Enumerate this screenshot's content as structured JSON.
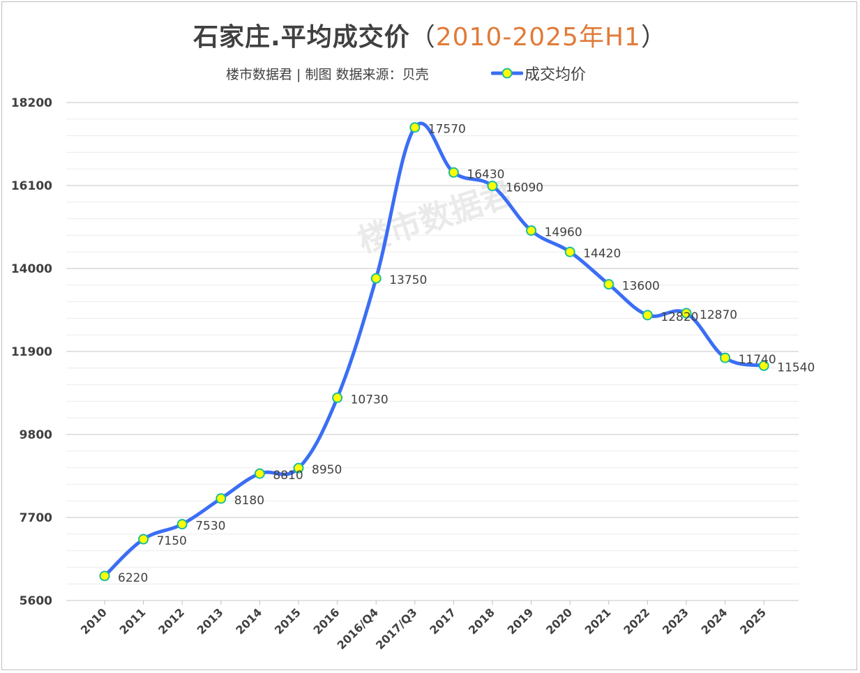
{
  "chart_data": {
    "type": "line",
    "title_main": "石家庄.平均成交价",
    "title_open": "（",
    "title_highlight": "2010-2025年H1",
    "title_close": "）",
    "subtitle": "楼市数据君 | 制图   数据来源：贝壳",
    "watermark": "楼市数据君",
    "categories": [
      "2010",
      "2011",
      "2012",
      "2013",
      "2014",
      "2015",
      "2016",
      "2016/Q4",
      "2017/Q3",
      "2017",
      "2018",
      "2019",
      "2020",
      "2021",
      "2022",
      "2023",
      "2024",
      "2025"
    ],
    "series": [
      {
        "name": "成交均价",
        "values": [
          6220,
          7150,
          7530,
          8180,
          8810,
          8950,
          10730,
          13750,
          17570,
          16430,
          16090,
          14960,
          14420,
          13600,
          12820,
          12870,
          11740,
          11540
        ],
        "labels": [
          "6220",
          "7150",
          "7530",
          "8180",
          "8810",
          "8950",
          "10730",
          "13750",
          "17570",
          "16430",
          "16090",
          "14960",
          "14420",
          "13600",
          "12820",
          "12870",
          "11740",
          "11540"
        ],
        "color": "#3b6ef5",
        "marker_fill": "#ffff00",
        "marker_edge": "#1abc9c"
      }
    ],
    "yticks": [
      5600,
      7700,
      9800,
      11900,
      14000,
      16100,
      18200
    ],
    "ylim": [
      5600,
      18200
    ],
    "grid": true,
    "legend_position": "top"
  }
}
